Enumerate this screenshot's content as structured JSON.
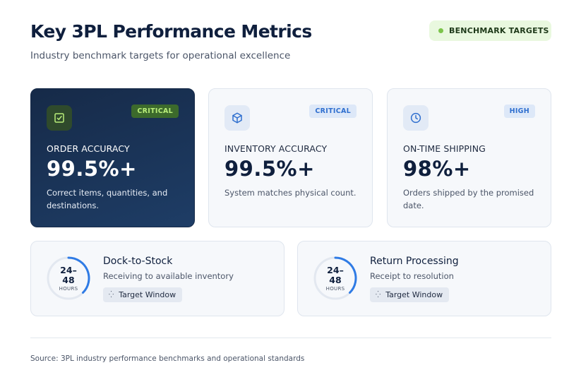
{
  "header": {
    "title": "Key 3PL Performance Metrics",
    "subtitle": "Industry benchmark targets for operational excellence",
    "badge": "BENCHMARK TARGETS"
  },
  "cards": [
    {
      "icon": "checkbox-icon",
      "tag": "CRITICAL",
      "label": "ORDER ACCURACY",
      "value": "99.5%+",
      "description": "Correct items, quantities, and destinations."
    },
    {
      "icon": "box-icon",
      "tag": "CRITICAL",
      "label": "INVENTORY ACCURACY",
      "value": "99.5%+",
      "description": "System matches physical count."
    },
    {
      "icon": "clock-icon",
      "tag": "HIGH",
      "label": "ON-TIME SHIPPING",
      "value": "98%+",
      "description": "Orders shipped by the promised date."
    }
  ],
  "windows": [
    {
      "range_top": "24–",
      "range_bottom": "48",
      "unit": "HOURS",
      "title": "Dock-to-Stock",
      "subtitle": "Receiving to available inventory",
      "chip": "Target Window"
    },
    {
      "range_top": "24–",
      "range_bottom": "48",
      "unit": "HOURS",
      "title": "Return Processing",
      "subtitle": "Receipt to resolution",
      "chip": "Target Window"
    }
  ],
  "footer": {
    "source": "Source: 3PL industry performance benchmarks and operational standards"
  },
  "colors": {
    "dark_card": "#162a48",
    "critical_green": "#b9ee7a",
    "high_blue": "#2f6fcf",
    "ring_blue": "#2f7be5",
    "badge_green_bg": "#e9f8df"
  }
}
